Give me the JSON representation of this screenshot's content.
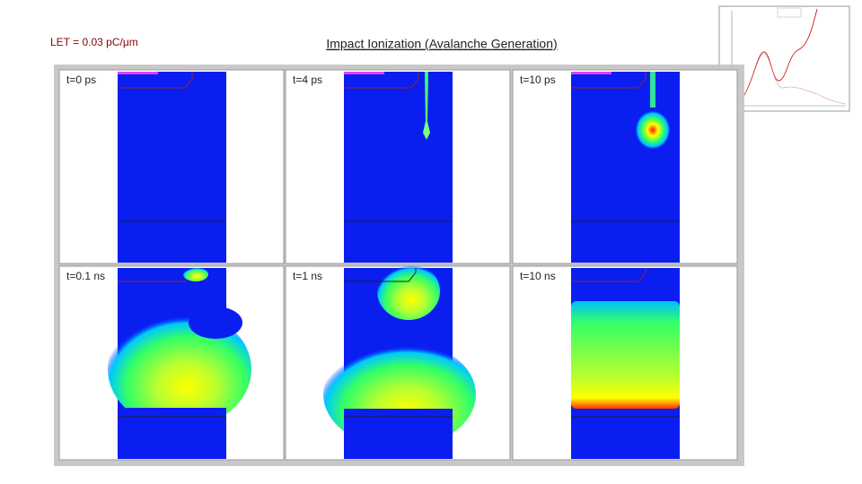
{
  "header": {
    "let_label": "LET = 0.03 pC/μm",
    "title": "Impact Ionization (Avalanche Generation)"
  },
  "panels": [
    {
      "label": "t=0 ps"
    },
    {
      "label": "t=4 ps"
    },
    {
      "label": "t=10 ps"
    },
    {
      "label": "t=0.1 ns"
    },
    {
      "label": "t=1 ns"
    },
    {
      "label": "t=10 ns"
    }
  ]
}
